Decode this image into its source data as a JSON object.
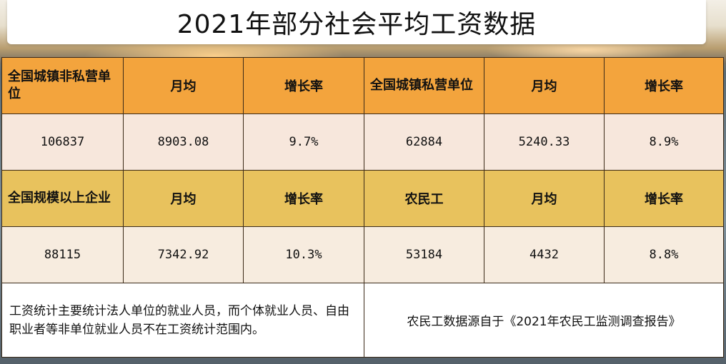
{
  "title": "2021年部分社会平均工资数据",
  "row1": {
    "headers": [
      "全国城镇非私营单位",
      "月均",
      "增长率",
      "全国城镇私营单位",
      "月均",
      "增长率"
    ],
    "values": [
      "106837",
      "8903.08",
      "9.7%",
      "62884",
      "5240.33",
      "8.9%"
    ]
  },
  "row2": {
    "headers": [
      "全国规模以上企业",
      "月均",
      "增长率",
      "农民工",
      "月均",
      "增长率"
    ],
    "values": [
      "88115",
      "7342.92",
      "10.3%",
      "53184",
      "4432",
      "8.8%"
    ]
  },
  "notes": {
    "left": "工资统计主要统计法人单位的就业人员，而个体就业人员、自由职业者等非单位就业人员不在工资统计范围内。",
    "right": "农民工数据源自于《2021年农民工监测调查报告》"
  }
}
